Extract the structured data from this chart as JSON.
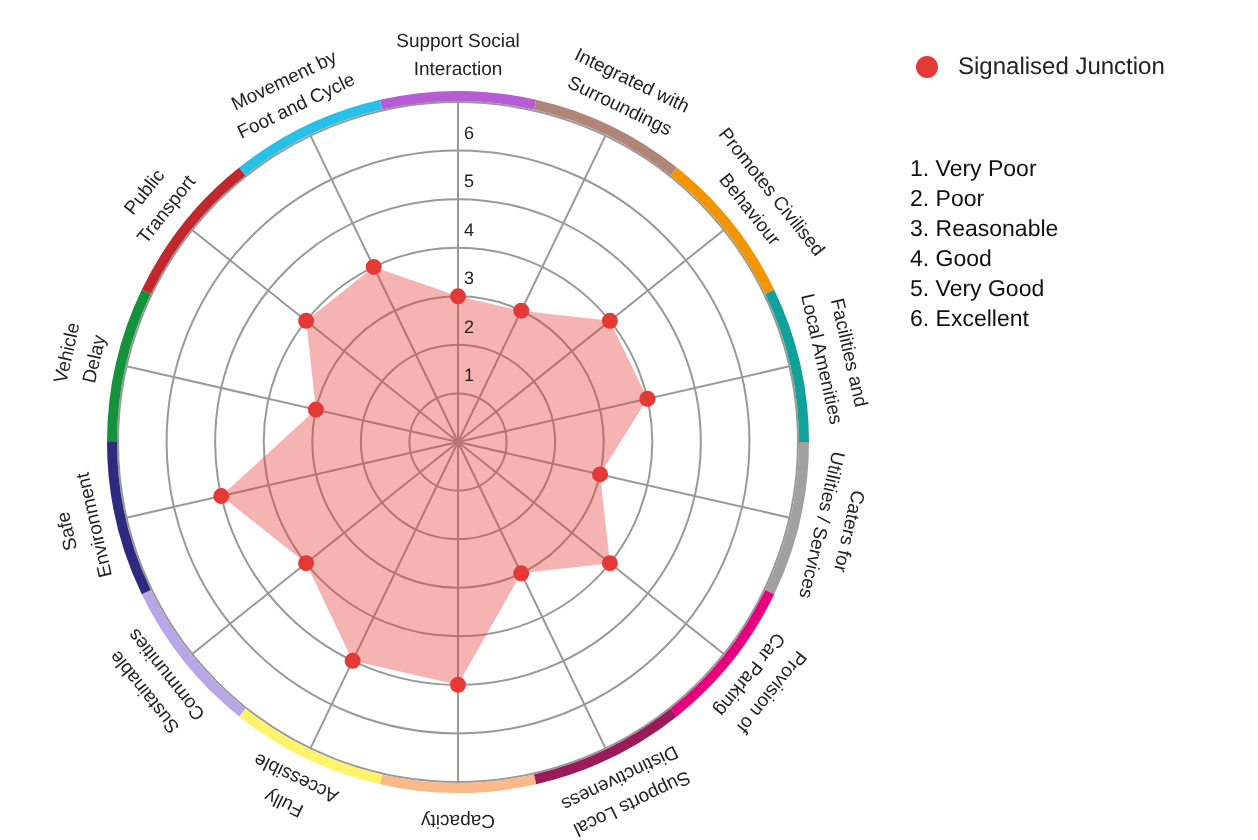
{
  "chart_data": {
    "type": "radar",
    "categories": [
      "Support Social Interaction",
      "Integrated with Surroundings",
      "Promotes Civilised Behaviour",
      "Facilities and Local Amenities",
      "Caters for Utilities / Services",
      "Provision of Car Parking",
      "Supports Local Distinctiveness",
      "Capacity",
      "Fully Accessible",
      "Sustainable Communities",
      "Safe Environment",
      "Vehicle Delay",
      "Public Transport",
      "Movement by Foot and Cycle"
    ],
    "colors": [
      "#b85cd6",
      "#b08577",
      "#f29500",
      "#10a29a",
      "#a0a0a0",
      "#e6007e",
      "#9b1b5a",
      "#fbb98a",
      "#fff36b",
      "#b9a6e6",
      "#2e2a80",
      "#14923c",
      "#c1272d",
      "#29c0e8"
    ],
    "series": [
      {
        "name": "Signalised Junction",
        "color": "#e53935",
        "values": [
          3,
          3,
          4,
          4,
          3,
          4,
          3,
          5,
          5,
          4,
          5,
          3,
          4,
          4
        ]
      }
    ],
    "ylim": [
      0,
      7
    ],
    "yticks": [
      1,
      2,
      3,
      4,
      5,
      6
    ],
    "grid": true,
    "legend": "top right",
    "marker": "circle",
    "annotations": [
      "1. Very Poor",
      "2. Poor",
      "3. Reasonable",
      "4. Good",
      "5. Very Good",
      "6. Excellent"
    ]
  }
}
